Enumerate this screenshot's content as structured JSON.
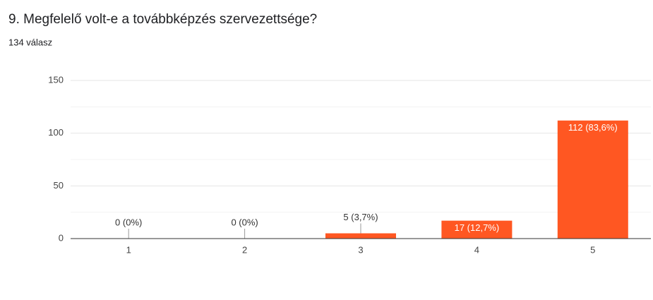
{
  "chart_data": {
    "type": "bar",
    "title": "9. Megfelelő volt-e a továbbképzés szervezettsége?",
    "subtitle": "134 válasz",
    "categories": [
      "1",
      "2",
      "3",
      "4",
      "5"
    ],
    "values": [
      0,
      0,
      5,
      17,
      112
    ],
    "value_labels": [
      "0 (0%)",
      "0 (0%)",
      "5 (3,7%)",
      "17 (12,7%)",
      "112 (83,6%)"
    ],
    "color": "#ff5722",
    "ylim": [
      0,
      150
    ],
    "yticks": [
      0,
      50,
      100,
      150
    ],
    "minor_yticks": [
      25,
      75,
      125
    ],
    "grid": true
  }
}
